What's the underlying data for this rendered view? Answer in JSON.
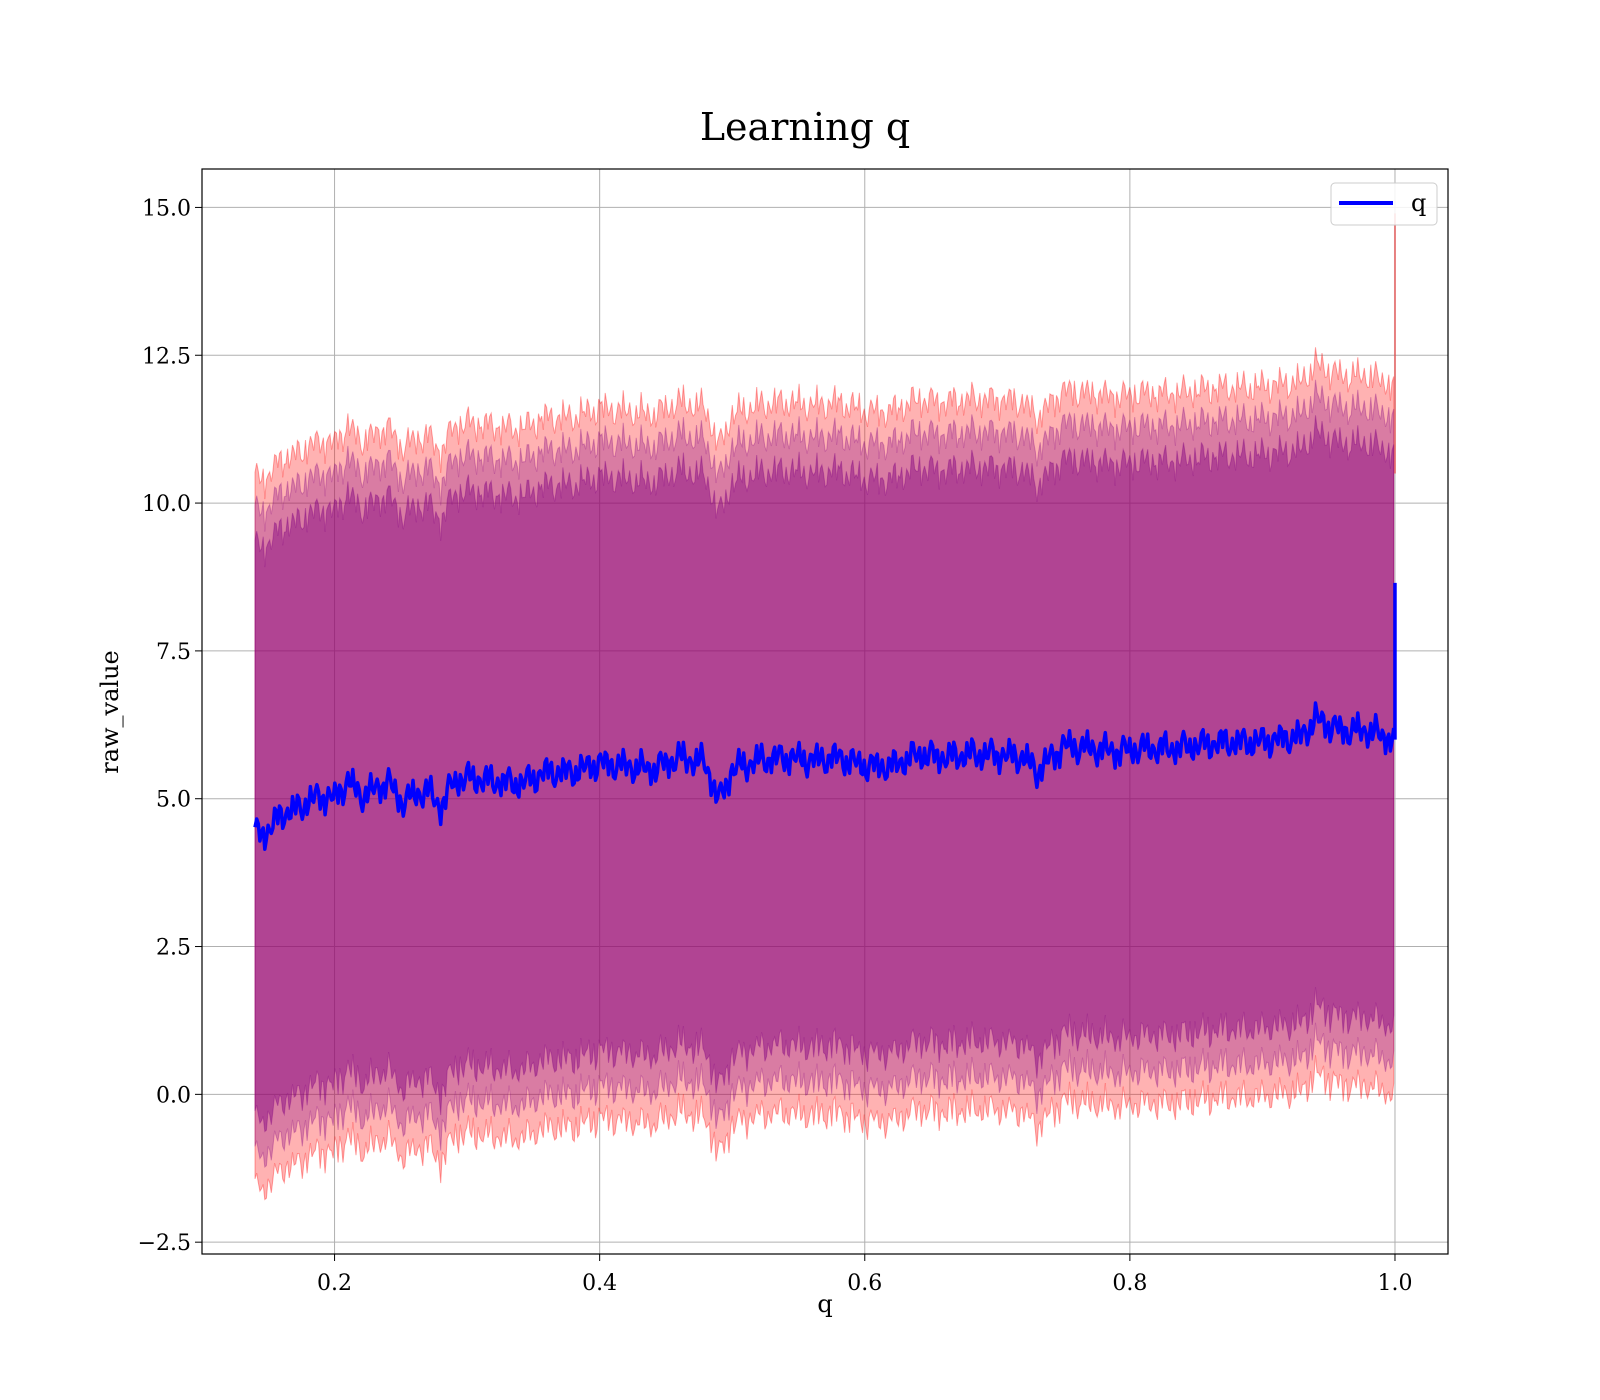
{
  "chart_data": {
    "type": "area",
    "title": "Learning q",
    "xlabel": "q",
    "ylabel": "raw_value",
    "xlim": [
      0.1,
      1.04
    ],
    "ylim": [
      -2.7,
      15.65
    ],
    "xticks": [
      0.2,
      0.4,
      0.6,
      0.8,
      1.0
    ],
    "xtick_labels": [
      "0.2",
      "0.4",
      "0.6",
      "0.8",
      "1.0"
    ],
    "yticks": [
      -2.5,
      0.0,
      2.5,
      5.0,
      7.5,
      10.0,
      12.5,
      15.0
    ],
    "ytick_labels": [
      "−2.5",
      "0.0",
      "2.5",
      "5.0",
      "7.5",
      "10.0",
      "12.5",
      "15.0"
    ],
    "grid": true,
    "legend": {
      "position": "top-right",
      "entries": [
        "q"
      ]
    },
    "colors": {
      "mean_line": "#0000ff",
      "band": "#ff0000",
      "inner_band": "#800080"
    },
    "x": [
      0.14,
      0.15,
      0.16,
      0.17,
      0.18,
      0.19,
      0.2,
      0.21,
      0.22,
      0.23,
      0.24,
      0.25,
      0.26,
      0.27,
      0.28,
      0.29,
      0.3,
      0.32,
      0.34,
      0.36,
      0.38,
      0.4,
      0.42,
      0.44,
      0.46,
      0.48,
      0.49,
      0.5,
      0.52,
      0.54,
      0.56,
      0.58,
      0.6,
      0.62,
      0.64,
      0.66,
      0.68,
      0.7,
      0.72,
      0.73,
      0.75,
      0.77,
      0.79,
      0.81,
      0.83,
      0.85,
      0.87,
      0.89,
      0.91,
      0.93,
      0.94,
      0.96,
      0.98,
      0.999
    ],
    "series": [
      {
        "name": "q",
        "values": [
          4.4,
          4.45,
          4.75,
          4.8,
          4.95,
          5.05,
          5.0,
          5.3,
          5.05,
          5.15,
          5.3,
          4.95,
          5.05,
          5.15,
          4.85,
          5.3,
          5.35,
          5.3,
          5.25,
          5.45,
          5.45,
          5.6,
          5.55,
          5.5,
          5.7,
          5.6,
          4.95,
          5.5,
          5.65,
          5.7,
          5.65,
          5.7,
          5.55,
          5.55,
          5.75,
          5.7,
          5.75,
          5.75,
          5.7,
          5.45,
          5.9,
          5.85,
          5.8,
          5.85,
          5.85,
          5.9,
          5.95,
          5.95,
          6.0,
          6.05,
          6.35,
          6.15,
          6.15,
          6.0
        ]
      }
    ],
    "band_note_end_spike": {
      "x": 1.0,
      "mean_high": 8.65,
      "upper_high": 14.9
    }
  }
}
